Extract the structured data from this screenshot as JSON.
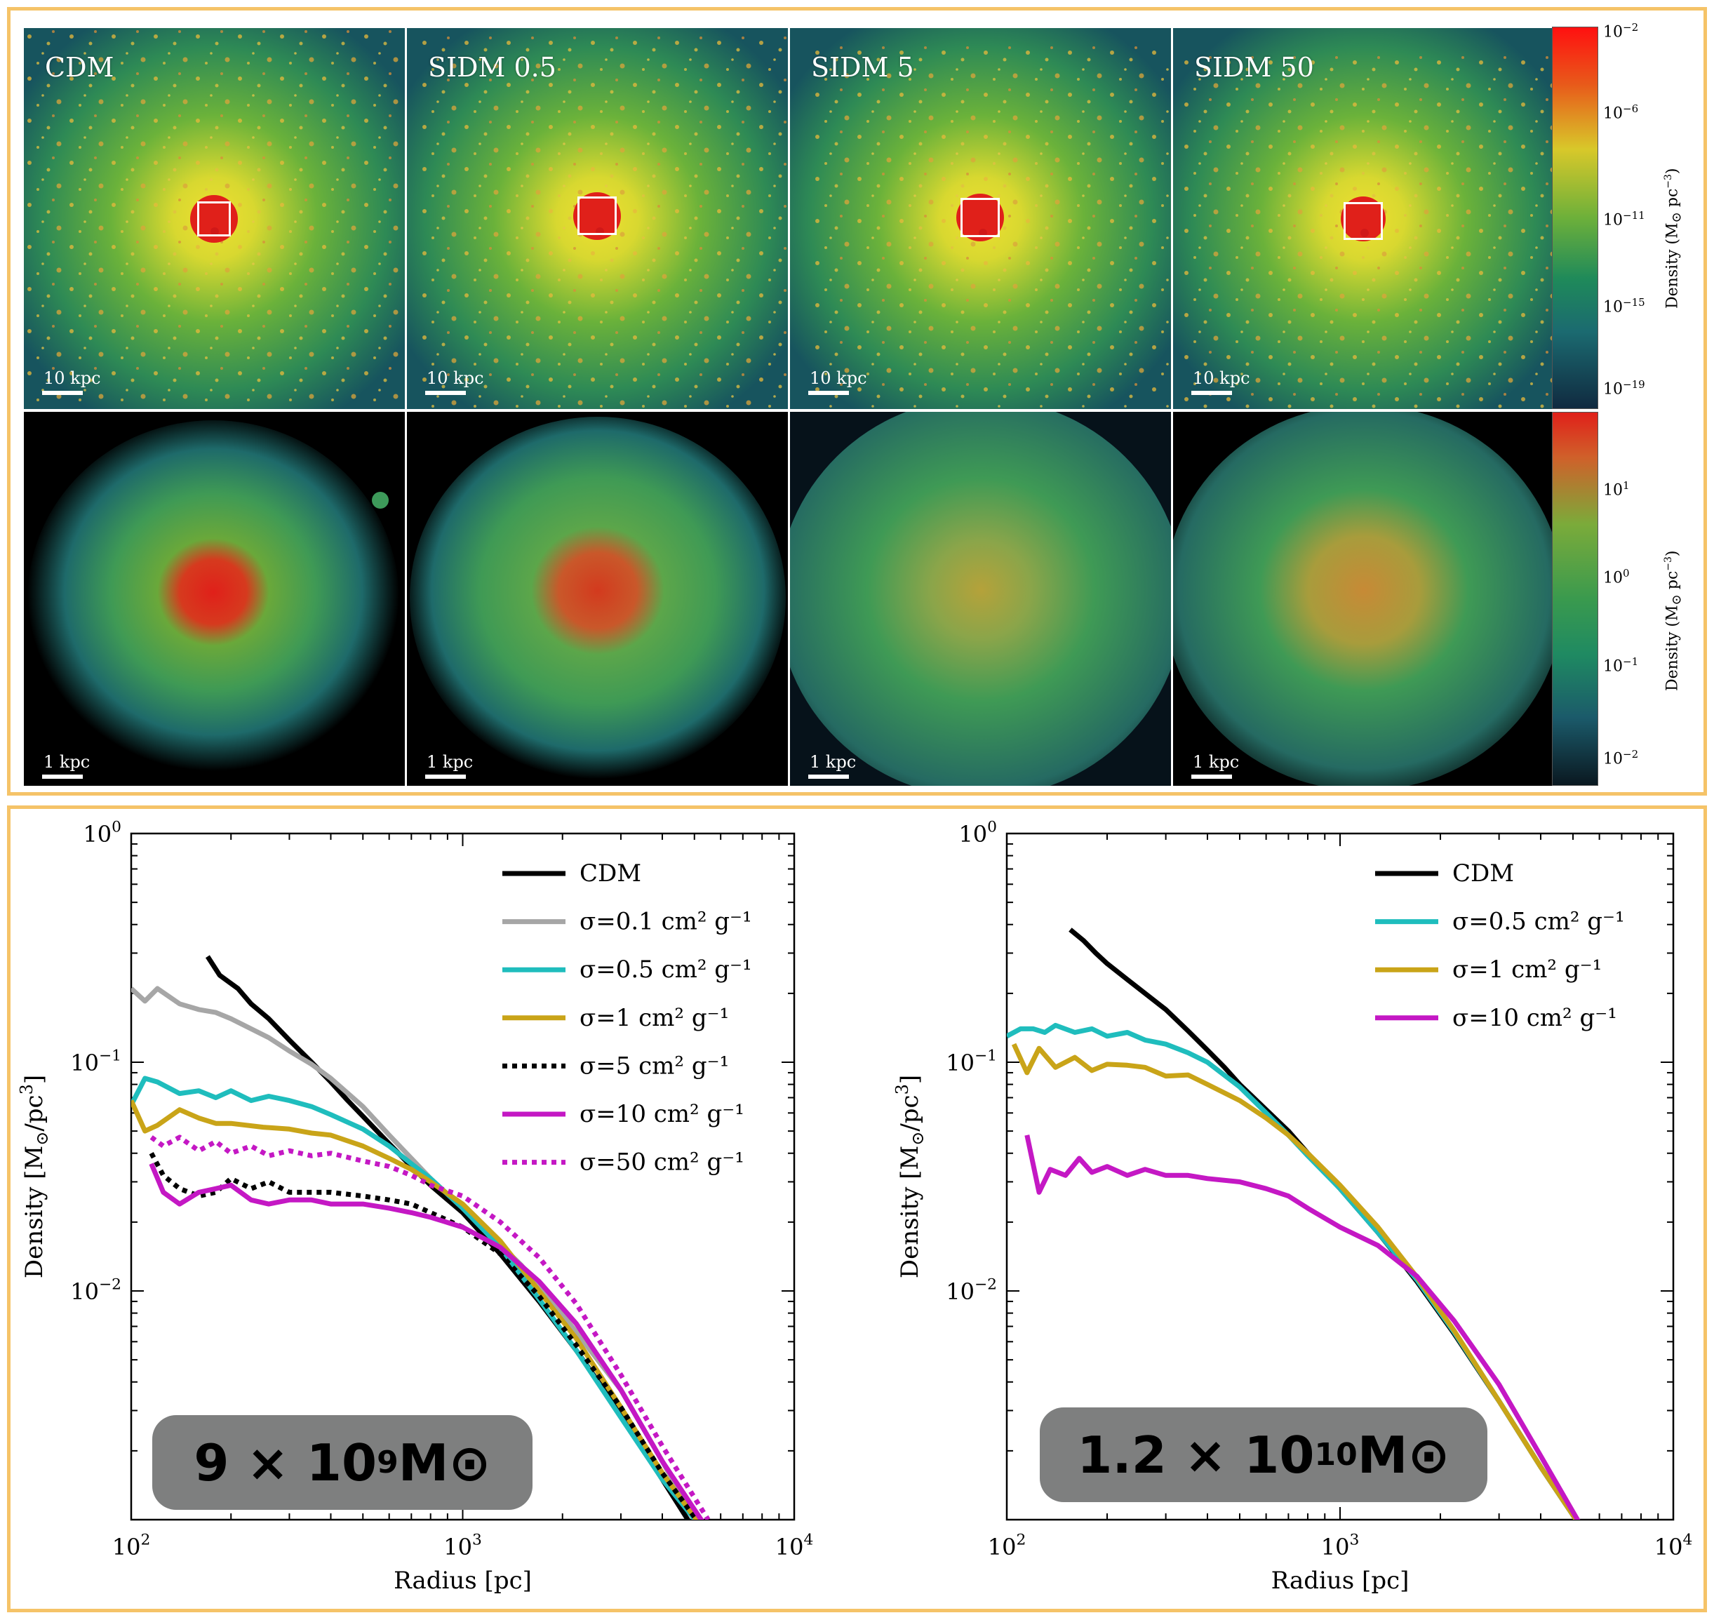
{
  "top": {
    "panels": [
      {
        "label": "CDM",
        "scale_top": "10 kpc",
        "scale_bottom": "1 kpc"
      },
      {
        "label": "SIDM 0.5",
        "scale_top": "10 kpc",
        "scale_bottom": "1 kpc"
      },
      {
        "label": "SIDM 5",
        "scale_top": "10 kpc",
        "scale_bottom": "1 kpc"
      },
      {
        "label": "SIDM 50",
        "scale_top": "10 kpc",
        "scale_bottom": "1 kpc"
      }
    ],
    "colorbar_top": {
      "ticks": [
        {
          "base": "10",
          "exp": "−2"
        },
        {
          "base": "10",
          "exp": "−6"
        },
        {
          "base": "10",
          "exp": "−11"
        },
        {
          "base": "10",
          "exp": "−15"
        },
        {
          "base": "10",
          "exp": "−19"
        }
      ],
      "title_main": "Density (M",
      "title_sun": "⊙",
      "title_unit": " pc",
      "title_exp": "−3",
      "title_close": ")"
    },
    "colorbar_bottom": {
      "ticks": [
        {
          "base": "10",
          "exp": "1"
        },
        {
          "base": "10",
          "exp": "0"
        },
        {
          "base": "10",
          "exp": "−1"
        },
        {
          "base": "10",
          "exp": "−2"
        }
      ],
      "title_main": "Density (M",
      "title_sun": "⊙",
      "title_unit": " pc",
      "title_exp": "−3",
      "title_close": ")"
    },
    "colors": {
      "bg_top": "#17545e",
      "bg_bottom": "#000000",
      "halo_green": "#4aa33a",
      "halo_yellow": "#d8d830",
      "core_red": "#e0201a"
    }
  },
  "chart_data": [
    {
      "type": "line",
      "xscale": "log",
      "yscale": "log",
      "xlim": [
        100,
        10000
      ],
      "ylim": [
        0.001,
        1
      ],
      "xlabel": "Radius [pc]",
      "ylabel_main": "Density [M",
      "ylabel_sun": "⊙",
      "ylabel_unit": "/pc",
      "ylabel_exp": "3",
      "ylabel_close": "]",
      "xticks": [
        {
          "base": "10",
          "exp": "2"
        },
        {
          "base": "10",
          "exp": "3"
        },
        {
          "base": "10",
          "exp": "4"
        }
      ],
      "yticks": [
        {
          "base": "10",
          "exp": "−2"
        },
        {
          "base": "10",
          "exp": "−1"
        },
        {
          "base": "10",
          "exp": "0"
        }
      ],
      "badge": {
        "prefix": "9 × 10",
        "exp": "9",
        "unit": " M",
        "sun": "⊙"
      },
      "legend_location": "top-right",
      "series": [
        {
          "name": "CDM",
          "label": "CDM",
          "color": "#000000",
          "dash": false,
          "x": [
            170,
            185,
            210,
            230,
            260,
            300,
            350,
            400,
            450,
            500,
            600,
            700,
            800,
            1000,
            1300,
            1700,
            2200,
            3000,
            4000,
            5000
          ],
          "y": [
            0.29,
            0.24,
            0.21,
            0.18,
            0.155,
            0.125,
            0.1,
            0.082,
            0.068,
            0.058,
            0.044,
            0.035,
            0.029,
            0.022,
            0.0145,
            0.009,
            0.0055,
            0.0029,
            0.0015,
            0.0009
          ]
        },
        {
          "name": "sigma_0.1",
          "label": "σ=0.1 cm² g⁻¹",
          "color": "#a6a6a6",
          "dash": false,
          "x": [
            100,
            110,
            120,
            140,
            160,
            180,
            200,
            230,
            260,
            300,
            350,
            400,
            500,
            600,
            700,
            800,
            1000,
            1500,
            2000,
            3000,
            4000,
            5000
          ],
          "y": [
            0.21,
            0.185,
            0.21,
            0.18,
            0.17,
            0.165,
            0.155,
            0.14,
            0.128,
            0.112,
            0.098,
            0.085,
            0.064,
            0.048,
            0.038,
            0.031,
            0.023,
            0.013,
            0.0079,
            0.0037,
            0.0018,
            0.001
          ]
        },
        {
          "name": "sigma_0.5",
          "label": "σ=0.5 cm² g⁻¹",
          "color": "#1fbdbd",
          "dash": false,
          "x": [
            100,
            110,
            120,
            140,
            160,
            180,
            200,
            230,
            260,
            300,
            350,
            400,
            500,
            600,
            700,
            800,
            1000,
            1300,
            1700,
            2200,
            3000,
            4000,
            5500
          ],
          "y": [
            0.065,
            0.085,
            0.082,
            0.073,
            0.075,
            0.07,
            0.075,
            0.068,
            0.071,
            0.068,
            0.064,
            0.059,
            0.051,
            0.043,
            0.036,
            0.031,
            0.023,
            0.0155,
            0.0092,
            0.0055,
            0.0028,
            0.0015,
            0.00085
          ]
        },
        {
          "name": "sigma_1",
          "label": "σ=1 cm² g⁻¹",
          "color": "#c9a418",
          "dash": false,
          "x": [
            100,
            110,
            120,
            140,
            160,
            180,
            200,
            250,
            300,
            350,
            400,
            500,
            600,
            700,
            800,
            1000,
            1300,
            1700,
            2200,
            3000,
            4000,
            5500
          ],
          "y": [
            0.068,
            0.05,
            0.053,
            0.062,
            0.057,
            0.054,
            0.054,
            0.052,
            0.051,
            0.049,
            0.048,
            0.043,
            0.038,
            0.034,
            0.03,
            0.024,
            0.0165,
            0.01,
            0.0062,
            0.0031,
            0.0016,
            0.00085
          ]
        },
        {
          "name": "sigma_5",
          "label": "σ=5 cm² g⁻¹",
          "color": "#000000",
          "dash": true,
          "x": [
            115,
            125,
            140,
            160,
            180,
            200,
            230,
            260,
            300,
            350,
            400,
            500,
            600,
            700,
            800,
            1000,
            1300,
            1700,
            2200,
            3000,
            4000,
            5500
          ],
          "y": [
            0.04,
            0.032,
            0.028,
            0.026,
            0.027,
            0.031,
            0.028,
            0.03,
            0.027,
            0.027,
            0.027,
            0.026,
            0.025,
            0.024,
            0.022,
            0.019,
            0.0145,
            0.0095,
            0.0058,
            0.0031,
            0.0016,
            0.00085
          ]
        },
        {
          "name": "sigma_10",
          "label": "σ=10 cm² g⁻¹",
          "color": "#c418c4",
          "dash": false,
          "x": [
            115,
            125,
            140,
            160,
            180,
            200,
            230,
            260,
            300,
            350,
            400,
            500,
            600,
            700,
            800,
            1000,
            1300,
            1700,
            2200,
            3000,
            4000,
            5500
          ],
          "y": [
            0.036,
            0.027,
            0.024,
            0.027,
            0.028,
            0.029,
            0.025,
            0.024,
            0.025,
            0.025,
            0.024,
            0.024,
            0.023,
            0.022,
            0.021,
            0.019,
            0.0155,
            0.011,
            0.0072,
            0.0037,
            0.0018,
            0.0009
          ]
        },
        {
          "name": "sigma_50",
          "label": "σ=50 cm² g⁻¹",
          "color": "#c418c4",
          "dash": true,
          "x": [
            115,
            125,
            140,
            160,
            180,
            200,
            230,
            260,
            300,
            350,
            400,
            500,
            600,
            700,
            800,
            1000,
            1300,
            1700,
            2200,
            3000,
            4000,
            5500
          ],
          "y": [
            0.047,
            0.043,
            0.047,
            0.041,
            0.045,
            0.04,
            0.043,
            0.039,
            0.041,
            0.039,
            0.04,
            0.037,
            0.035,
            0.032,
            0.029,
            0.026,
            0.02,
            0.014,
            0.0088,
            0.0043,
            0.0021,
            0.001
          ]
        }
      ]
    },
    {
      "type": "line",
      "xscale": "log",
      "yscale": "log",
      "xlim": [
        100,
        10000
      ],
      "ylim": [
        0.001,
        1
      ],
      "xlabel": "Radius [pc]",
      "ylabel_main": "Density [M",
      "ylabel_sun": "⊙",
      "ylabel_unit": "/pc",
      "ylabel_exp": "3",
      "ylabel_close": "]",
      "xticks": [
        {
          "base": "10",
          "exp": "2"
        },
        {
          "base": "10",
          "exp": "3"
        },
        {
          "base": "10",
          "exp": "4"
        }
      ],
      "yticks": [
        {
          "base": "10",
          "exp": "−2"
        },
        {
          "base": "10",
          "exp": "−1"
        },
        {
          "base": "10",
          "exp": "0"
        }
      ],
      "badge": {
        "prefix": "1.2 × 10",
        "exp": "10",
        "unit": " M",
        "sun": "⊙"
      },
      "legend_location": "top-right",
      "series": [
        {
          "name": "CDM",
          "label": "CDM",
          "color": "#000000",
          "dash": false,
          "x": [
            155,
            170,
            185,
            200,
            230,
            260,
            300,
            350,
            400,
            450,
            500,
            600,
            700,
            800,
            1000,
            1300,
            1700,
            2200,
            3000,
            4000,
            5500
          ],
          "y": [
            0.38,
            0.34,
            0.3,
            0.27,
            0.23,
            0.2,
            0.17,
            0.137,
            0.113,
            0.095,
            0.08,
            0.062,
            0.05,
            0.04,
            0.028,
            0.018,
            0.011,
            0.0065,
            0.0033,
            0.0017,
            0.00085
          ]
        },
        {
          "name": "sigma_0.5",
          "label": "σ=0.5 cm² g⁻¹",
          "color": "#1fbdbd",
          "dash": false,
          "x": [
            100,
            110,
            120,
            130,
            140,
            160,
            180,
            200,
            230,
            260,
            300,
            350,
            400,
            500,
            600,
            700,
            800,
            1000,
            1300,
            1700,
            2200,
            3000,
            4000,
            5500
          ],
          "y": [
            0.13,
            0.14,
            0.14,
            0.135,
            0.145,
            0.135,
            0.14,
            0.13,
            0.135,
            0.125,
            0.12,
            0.11,
            0.1,
            0.078,
            0.06,
            0.048,
            0.039,
            0.028,
            0.018,
            0.0112,
            0.0066,
            0.0033,
            0.0017,
            0.00085
          ]
        },
        {
          "name": "sigma_1",
          "label": "σ=1 cm² g⁻¹",
          "color": "#c9a418",
          "dash": false,
          "x": [
            105,
            115,
            125,
            140,
            160,
            180,
            200,
            230,
            260,
            300,
            350,
            400,
            500,
            600,
            700,
            800,
            1000,
            1300,
            1700,
            2200,
            3000,
            4000,
            5500
          ],
          "y": [
            0.12,
            0.09,
            0.115,
            0.095,
            0.105,
            0.092,
            0.098,
            0.097,
            0.095,
            0.087,
            0.088,
            0.08,
            0.068,
            0.057,
            0.048,
            0.04,
            0.029,
            0.019,
            0.0115,
            0.0067,
            0.0033,
            0.0017,
            0.00085
          ]
        },
        {
          "name": "sigma_10",
          "label": "σ=10 cm² g⁻¹",
          "color": "#c418c4",
          "dash": false,
          "x": [
            115,
            125,
            135,
            150,
            165,
            180,
            200,
            230,
            260,
            300,
            350,
            400,
            500,
            600,
            700,
            800,
            1000,
            1300,
            1700,
            2200,
            3000,
            4000,
            5500
          ],
          "y": [
            0.048,
            0.027,
            0.034,
            0.032,
            0.038,
            0.033,
            0.035,
            0.032,
            0.034,
            0.032,
            0.032,
            0.031,
            0.03,
            0.028,
            0.026,
            0.023,
            0.019,
            0.0158,
            0.0116,
            0.0074,
            0.0039,
            0.0019,
            0.00085
          ]
        }
      ]
    }
  ]
}
